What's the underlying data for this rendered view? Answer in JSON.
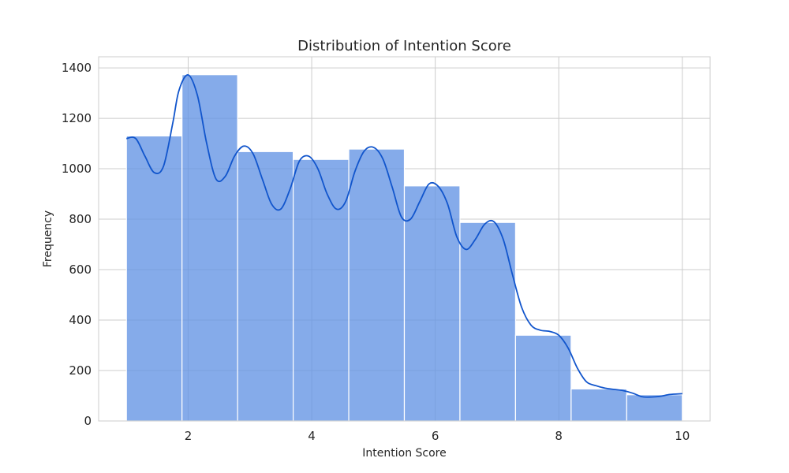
{
  "chart_data": {
    "type": "bar",
    "title": "Distribution of Intention Score",
    "xlabel": "Intention Score",
    "ylabel": "Frequency",
    "xlim": [
      0.55,
      10.45
    ],
    "ylim": [
      0,
      1444
    ],
    "xticks": [
      2,
      4,
      6,
      8,
      10
    ],
    "yticks": [
      0,
      200,
      400,
      600,
      800,
      1000,
      1200,
      1400
    ],
    "grid": true,
    "bins": [
      {
        "x0": 1.0,
        "x1": 1.9,
        "value": 1130
      },
      {
        "x0": 1.9,
        "x1": 2.8,
        "value": 1373
      },
      {
        "x0": 2.8,
        "x1": 3.7,
        "value": 1068
      },
      {
        "x0": 3.7,
        "x1": 4.6,
        "value": 1037
      },
      {
        "x0": 4.6,
        "x1": 5.5,
        "value": 1078
      },
      {
        "x0": 5.5,
        "x1": 6.4,
        "value": 932
      },
      {
        "x0": 6.4,
        "x1": 7.3,
        "value": 787
      },
      {
        "x0": 7.3,
        "x1": 8.2,
        "value": 340
      },
      {
        "x0": 8.2,
        "x1": 9.1,
        "value": 127
      },
      {
        "x0": 9.1,
        "x1": 10.0,
        "value": 104
      }
    ],
    "kde": {
      "x": [
        1.0,
        1.15,
        1.3,
        1.45,
        1.6,
        1.75,
        1.85,
        2.0,
        2.15,
        2.3,
        2.45,
        2.6,
        2.75,
        2.9,
        3.05,
        3.2,
        3.35,
        3.5,
        3.65,
        3.8,
        3.95,
        4.1,
        4.25,
        4.4,
        4.55,
        4.7,
        4.85,
        5.0,
        5.15,
        5.3,
        5.45,
        5.6,
        5.75,
        5.9,
        6.05,
        6.2,
        6.35,
        6.5,
        6.65,
        6.8,
        6.95,
        7.1,
        7.25,
        7.4,
        7.55,
        7.7,
        7.85,
        8.0,
        8.15,
        8.3,
        8.45,
        8.6,
        8.75,
        8.9,
        9.05,
        9.2,
        9.35,
        9.5,
        9.65,
        9.8,
        10.0
      ],
      "y": [
        1120,
        1120,
        1050,
        985,
        1010,
        1180,
        1310,
        1372,
        1290,
        1100,
        960,
        970,
        1050,
        1090,
        1060,
        960,
        860,
        840,
        920,
        1030,
        1050,
        1000,
        900,
        840,
        870,
        990,
        1070,
        1085,
        1040,
        930,
        810,
        800,
        870,
        940,
        930,
        860,
        730,
        680,
        720,
        780,
        790,
        720,
        580,
        450,
        380,
        360,
        355,
        340,
        290,
        210,
        155,
        140,
        130,
        125,
        120,
        110,
        96,
        95,
        98,
        105,
        108
      ]
    },
    "colors": {
      "bar_fill": "#6394e4",
      "bar_edge": "#ffffff",
      "kde_line": "#1155cc",
      "grid": "#cccccc",
      "spine": "#cccccc"
    }
  }
}
